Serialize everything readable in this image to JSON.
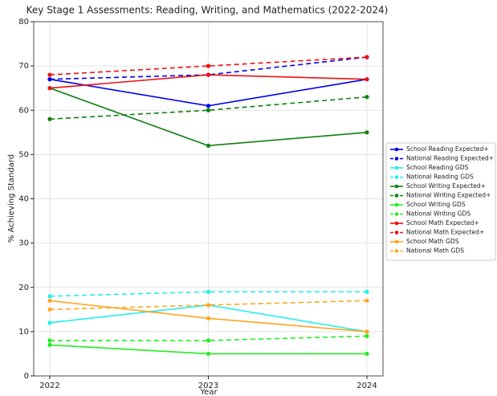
{
  "chart_data": {
    "type": "line",
    "title": "Key Stage 1 Assessments: Reading, Writing, and Mathematics (2022-2024)",
    "xlabel": "Year",
    "ylabel": "% Achieving Standard",
    "categories": [
      "2022",
      "2023",
      "2024"
    ],
    "ylim": [
      0,
      80
    ],
    "yticks": [
      0,
      10,
      20,
      30,
      40,
      50,
      60,
      70,
      80
    ],
    "grid": true,
    "legend": "right",
    "series": [
      {
        "name": "School Reading Expected+",
        "color": "#0000ee",
        "linestyle": "solid",
        "values": [
          67,
          61,
          67
        ]
      },
      {
        "name": "National Reading Expected+",
        "color": "#0000ee",
        "linestyle": "dashed",
        "values": [
          67,
          68,
          72
        ]
      },
      {
        "name": "School Reading GDS",
        "color": "#22eeee",
        "linestyle": "solid",
        "values": [
          12,
          16,
          10
        ]
      },
      {
        "name": "National Reading GDS",
        "color": "#22eeee",
        "linestyle": "dashed",
        "values": [
          18,
          19,
          19
        ]
      },
      {
        "name": "School Writing Expected+",
        "color": "#108010",
        "linestyle": "solid",
        "values": [
          65,
          52,
          55
        ]
      },
      {
        "name": "National Writing Expected+",
        "color": "#108010",
        "linestyle": "dashed",
        "values": [
          58,
          60,
          63
        ]
      },
      {
        "name": "School Writing GDS",
        "color": "#22ee22",
        "linestyle": "solid",
        "values": [
          7,
          5,
          5
        ]
      },
      {
        "name": "National Writing GDS",
        "color": "#22ee22",
        "linestyle": "dashed",
        "values": [
          8,
          8,
          9
        ]
      },
      {
        "name": "School Math Expected+",
        "color": "#ee1111",
        "linestyle": "solid",
        "values": [
          65,
          68,
          67
        ]
      },
      {
        "name": "National Math Expected+",
        "color": "#ee1111",
        "linestyle": "dashed",
        "values": [
          68,
          70,
          72
        ]
      },
      {
        "name": "School Math GDS",
        "color": "#ffa520",
        "linestyle": "solid",
        "values": [
          17,
          13,
          10
        ]
      },
      {
        "name": "National Math GDS",
        "color": "#ffa520",
        "linestyle": "dashed",
        "values": [
          15,
          16,
          17
        ]
      }
    ]
  }
}
